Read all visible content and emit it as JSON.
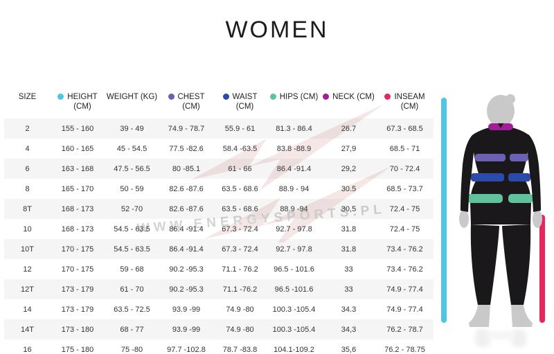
{
  "chart_data": {
    "type": "table",
    "title": "WOMEN",
    "columns": [
      {
        "line1": "SIZE",
        "line2": "",
        "dot": null,
        "dot_name": null
      },
      {
        "line1": "HEIGHT",
        "line2": "(CM)",
        "dot": "#4FC4E9",
        "dot_name": "height-legend-dot"
      },
      {
        "line1": "WEIGHT (KG)",
        "line2": "",
        "dot": null,
        "dot_name": null
      },
      {
        "line1": "CHEST",
        "line2": "(CM)",
        "dot": "#6A60B4",
        "dot_name": "chest-legend-dot"
      },
      {
        "line1": "WAIST",
        "line2": "(CM)",
        "dot": "#2C4BA8",
        "dot_name": "waist-legend-dot"
      },
      {
        "line1": "HIPS (CM)",
        "line2": "",
        "dot": "#5FC29D",
        "dot_name": "hips-legend-dot"
      },
      {
        "line1": "NECK (CM)",
        "line2": "",
        "dot": "#A01F97",
        "dot_name": "neck-legend-dot"
      },
      {
        "line1": "INSEAM",
        "line2": "(CM)",
        "dot": "#E8255C",
        "dot_name": "inseam-legend-dot"
      }
    ],
    "rows": [
      [
        "2",
        "155 - 160",
        "39 - 49",
        "74.9 - 78.7",
        "55.9 - 61",
        "81.3 - 86.4",
        "26.7",
        "67.3 - 68.5"
      ],
      [
        "4",
        "160 - 165",
        "45 - 54.5",
        "77.5 -82.6",
        "58.4 -63.5",
        "83.8 -88.9",
        "27,9",
        "68.5 - 71"
      ],
      [
        "6",
        "163 - 168",
        "47.5 - 56.5",
        "80 -85.1",
        "61 - 66",
        "86.4 -91.4",
        "29,2",
        "70 - 72.4"
      ],
      [
        "8",
        "165 - 170",
        "50 - 59",
        "82.6 -87.6",
        "63.5 - 68.6",
        "88.9 - 94",
        "30.5",
        "68.5 - 73.7"
      ],
      [
        "8T",
        "168 - 173",
        "52 -70",
        "82.6 -87.6",
        "63.5 - 68.6",
        "88.9 -94",
        "30,5",
        "72.4 - 75"
      ],
      [
        "10",
        "168 - 173",
        "54.5 - 63.5",
        "86.4 -91.4",
        "67.3 - 72.4",
        "92.7 - 97.8",
        "31.8",
        "72.4 - 75"
      ],
      [
        "10T",
        "170 - 175",
        "54.5 - 63.5",
        "86.4 -91.4",
        "67.3 - 72.4",
        "92.7 - 97.8",
        "31.8",
        "73.4 - 76.2"
      ],
      [
        "12",
        "170 - 175",
        "59 - 68",
        "90.2 -95.3",
        "71.1 - 76.2",
        "96.5 - 101.6",
        "33",
        "73.4 - 76.2"
      ],
      [
        "12T",
        "173 - 179",
        "61 - 70",
        "90.2 -95.3",
        "71.1 -76.2",
        "96.5 -101.6",
        "33",
        "74.9 - 77.4"
      ],
      [
        "14",
        "173 - 179",
        "63.5 - 72.5",
        "93.9 -99",
        "74.9 -80",
        "100.3 -105.4",
        "34.3",
        "74.9 - 77.4"
      ],
      [
        "14T",
        "173 - 180",
        "68 - 77",
        "93.9 -99",
        "74.9 -80",
        "100.3 -105.4",
        "34,3",
        "76.2 - 78.7"
      ],
      [
        "16",
        "175 - 180",
        "75 -80",
        "97.7 -102.8",
        "78.7 -83.8",
        "104.1-109.2",
        "35,6",
        "76.2 - 78.75"
      ]
    ]
  },
  "watermark": "WWW.ENERGYSPORTS.PL",
  "colors": {
    "height": "#4FC4E9",
    "chest": "#6A60B4",
    "waist": "#2C4BA8",
    "hips": "#5FC29D",
    "neck": "#A01F97",
    "inseam": "#E8255C",
    "body": "#1B181C",
    "skin": "#C9C9C9",
    "bolt": "#F5E7E5"
  }
}
